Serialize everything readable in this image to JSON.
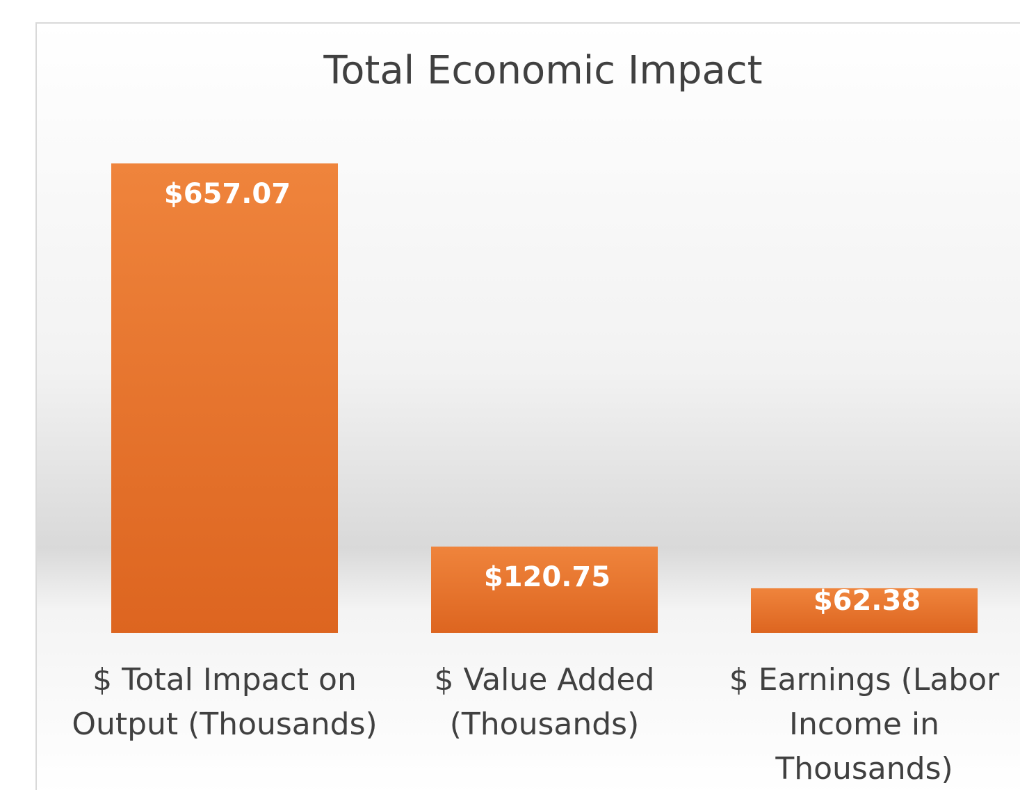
{
  "chart_data": {
    "type": "bar",
    "title": "Total Economic Impact",
    "categories": [
      "$ Total Impact on Output (Thousands)",
      "$ Value Added (Thousands)",
      "$ Earnings (Labor Income in Thousands)"
    ],
    "values": [
      657.07,
      120.75,
      62.38
    ],
    "value_labels": [
      "$657.07",
      "$120.75",
      "$62.38"
    ],
    "color": "#e8722e"
  }
}
